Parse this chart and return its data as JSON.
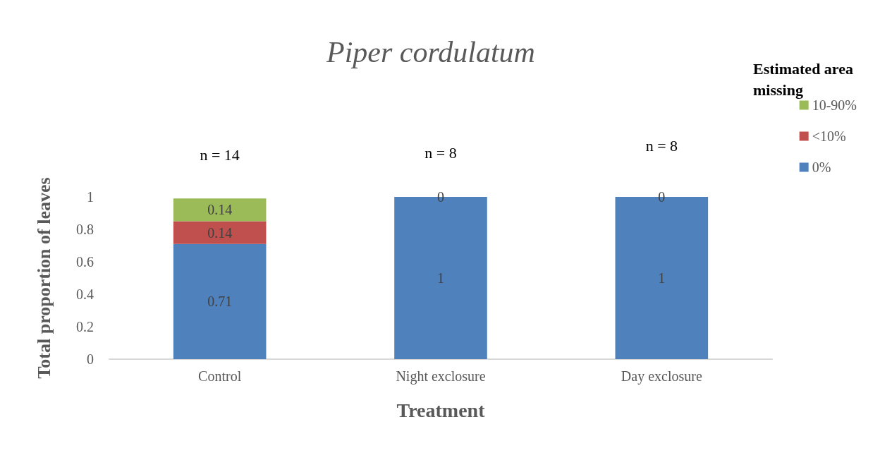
{
  "chart_data": {
    "type": "bar",
    "title": "Piper cordulatum",
    "xlabel": "Treatment",
    "ylabel": "Total proportion of leaves",
    "legend_title": "Estimated area missing",
    "categories": [
      "Control",
      "Night exclosure",
      "Day exclosure"
    ],
    "stacked": true,
    "series": [
      {
        "name": "0%",
        "color": "#4f81bd",
        "values": [
          0.71,
          1,
          1
        ],
        "value_labels": [
          "0.71",
          "1",
          "1"
        ]
      },
      {
        "name": "<10%",
        "color": "#c0504d",
        "values": [
          0.14,
          0,
          0
        ],
        "value_labels": [
          "0.14",
          null,
          null
        ]
      },
      {
        "name": "10-90%",
        "color": "#9bbb59",
        "values": [
          0.14,
          0,
          0
        ],
        "value_labels": [
          "0.14",
          "0",
          "0"
        ]
      }
    ],
    "annotations": [
      "n = 14",
      "n = 8",
      "n = 8"
    ],
    "ylim": [
      0,
      1
    ],
    "yticks": [
      0,
      0.2,
      0.4,
      0.6,
      0.8,
      1
    ],
    "grid": false,
    "legend": "top right"
  }
}
